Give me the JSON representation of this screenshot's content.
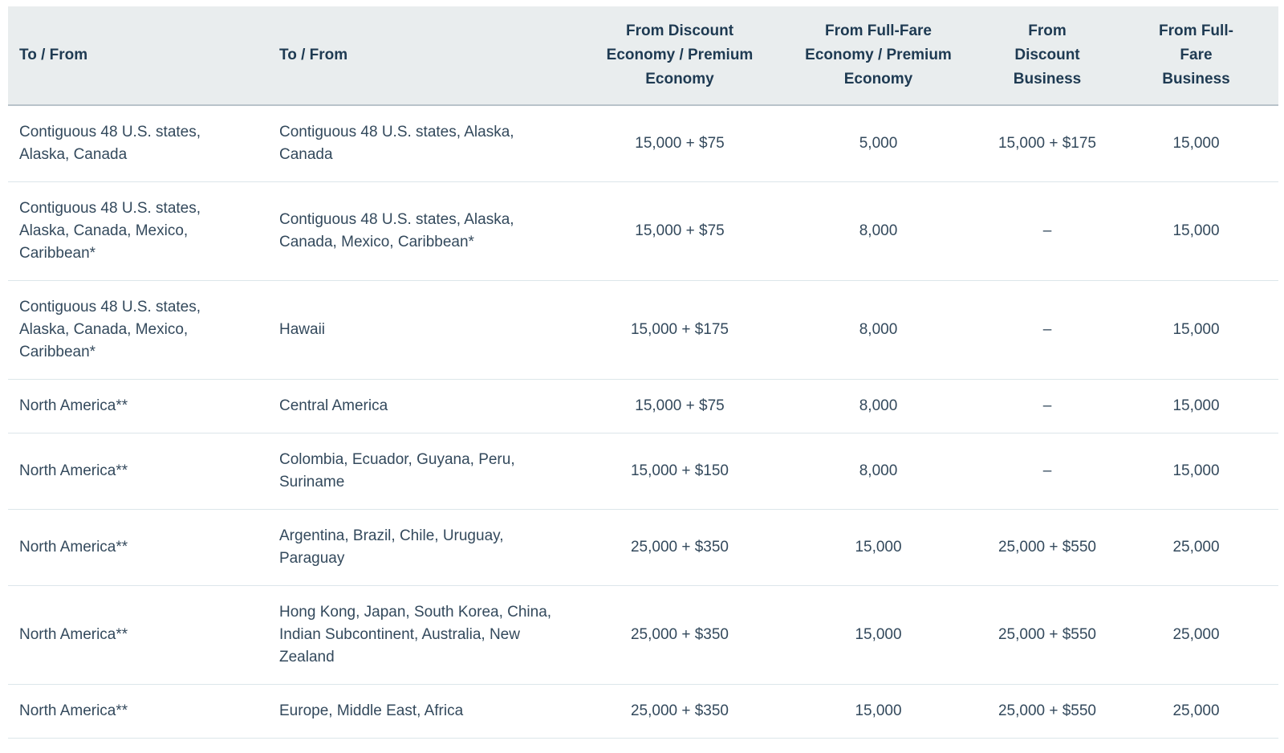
{
  "table": {
    "header": {
      "col1": "To / From",
      "col2": "To / From",
      "col3": "From Discount Economy / Premium Economy",
      "col4": "From Full-Fare Economy / Premium Economy",
      "col5": "From Discount Business",
      "col6": "From Full-Fare Business"
    },
    "rows": [
      [
        "Contiguous 48 U.S. states, Alaska, Canada",
        "Contiguous 48 U.S. states, Alaska, Canada",
        "15,000 + $75",
        "5,000",
        "15,000 + $175",
        "15,000"
      ],
      [
        "Contiguous 48 U.S. states, Alaska, Canada, Mexico, Caribbean*",
        "Contiguous 48 U.S. states, Alaska, Canada, Mexico, Caribbean*",
        "15,000 + $75",
        "8,000",
        "–",
        "15,000"
      ],
      [
        "Contiguous 48 U.S. states, Alaska, Canada, Mexico, Caribbean*",
        "Hawaii",
        "15,000 + $175",
        "8,000",
        "–",
        "15,000"
      ],
      [
        "North America**",
        "Central America",
        "15,000 + $75",
        "8,000",
        "–",
        "15,000"
      ],
      [
        "North America**",
        "Colombia, Ecuador, Guyana, Peru, Suriname",
        "15,000 + $150",
        "8,000",
        "–",
        "15,000"
      ],
      [
        "North America**",
        "Argentina, Brazil, Chile, Uruguay, Paraguay",
        "25,000 + $350",
        "15,000",
        "25,000 + $550",
        "25,000"
      ],
      [
        "North America**",
        "Hong Kong, Japan, South Korea, China, Indian Subcontinent, Australia, New Zealand",
        "25,000 + $350",
        "15,000",
        "25,000 + $550",
        "25,000"
      ],
      [
        "North America**",
        "Europe, Middle East, Africa",
        "25,000 + $350",
        "15,000",
        "25,000 + $550",
        "25,000"
      ]
    ]
  },
  "colors": {
    "header_bg": "#e9edee",
    "header_text": "#1e3a52",
    "body_text": "#33495c",
    "header_border": "#b9c3ca",
    "row_border": "#dce6ea"
  }
}
